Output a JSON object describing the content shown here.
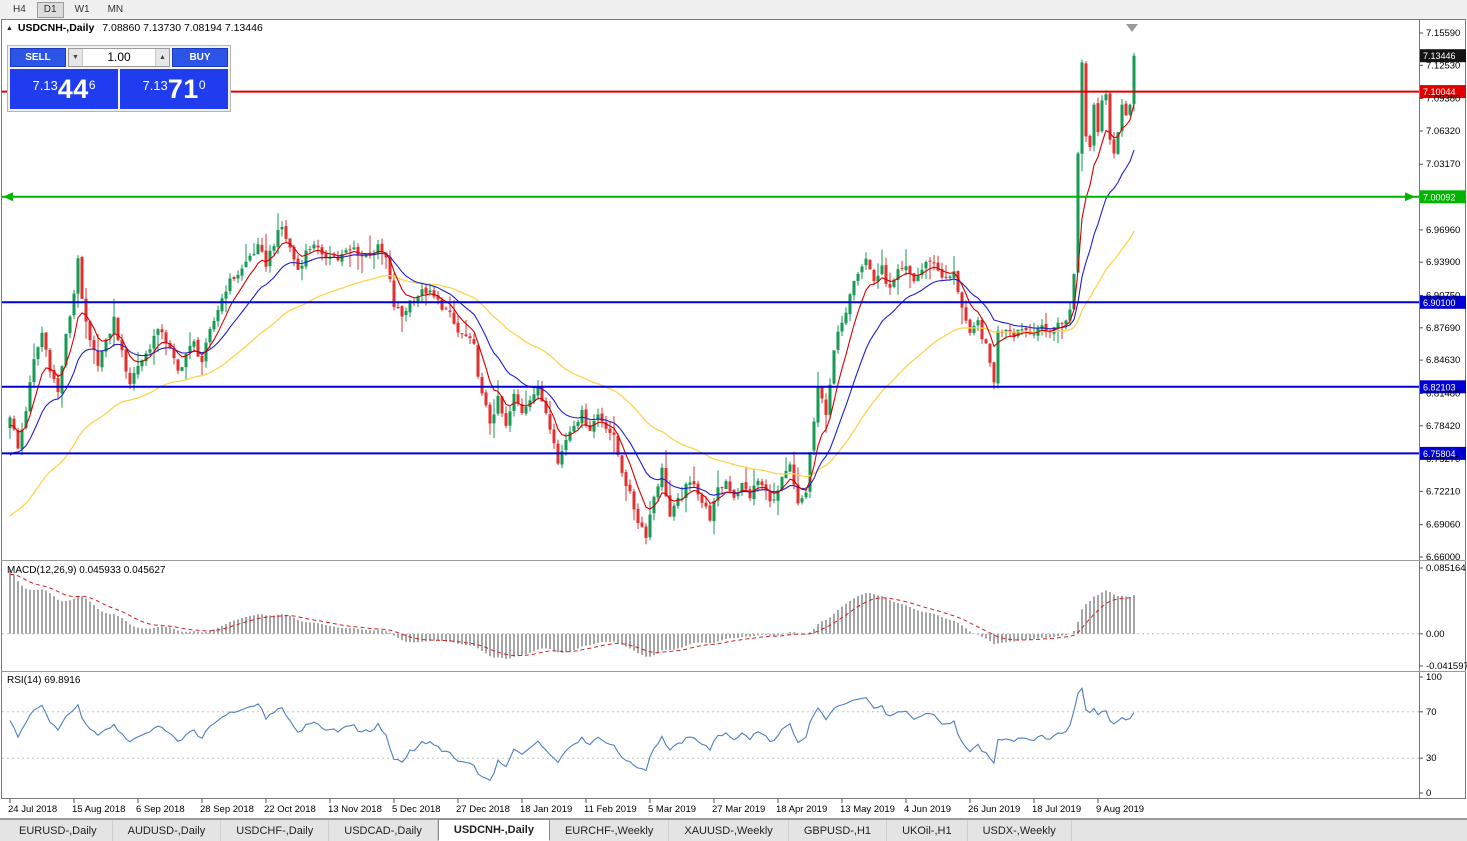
{
  "toolbar": {
    "timeframes": [
      "H4",
      "D1",
      "W1",
      "MN"
    ],
    "active": "D1"
  },
  "chart": {
    "symbol_period": "USDCNH-,Daily",
    "ohlc_text": "7.08860 7.13730 7.08194 7.13446"
  },
  "trade_panel": {
    "sell_label": "SELL",
    "buy_label": "BUY",
    "volume": "1.00",
    "bid": {
      "prefix": "7.13",
      "pips": "44",
      "point": "6",
      "full": "7.13446"
    },
    "ask": {
      "prefix": "7.13",
      "pips": "71",
      "point": "0",
      "full": "7.13710"
    }
  },
  "indicators": {
    "macd": {
      "label": "MACD(12,26,9) 0.045933 0.045627",
      "scale_max": "0.085164",
      "scale_zero": "0.00",
      "scale_min": "-0.041597"
    },
    "rsi": {
      "label": "RSI(14) 69.8916",
      "scale": [
        "100",
        "70",
        "30",
        "0"
      ]
    }
  },
  "price_scale": {
    "ticks": [
      "7.15590",
      "7.12530",
      "7.09380",
      "7.06320",
      "7.03170",
      "6.96960",
      "6.93900",
      "6.90750",
      "6.87690",
      "6.84630",
      "6.81480",
      "6.78420",
      "6.75270",
      "6.72210",
      "6.69060",
      "6.66000"
    ],
    "markers": [
      {
        "value": "7.13446",
        "bg": "#141414"
      },
      {
        "value": "7.10044",
        "bg": "#e00000"
      },
      {
        "value": "7.00092",
        "bg": "#00b400"
      },
      {
        "value": "6.90100",
        "bg": "#0000d0"
      },
      {
        "value": "6.82103",
        "bg": "#0000d0"
      },
      {
        "value": "6.75804",
        "bg": "#0000d0"
      }
    ]
  },
  "tabs": {
    "items": [
      "EURUSD-,Daily",
      "AUDUSD-,Daily",
      "USDCHF-,Daily",
      "USDCAD-,Daily",
      "USDCNH-,Daily",
      "EURCHF-,Weekly",
      "XAUUSD-,Weekly",
      "GBPUSD-,H1",
      "UKOil-,H1",
      "USDX-,Weekly"
    ],
    "active_index": 4
  },
  "chart_data": {
    "type": "candlestick",
    "symbol": "USDCNH",
    "period": "Daily",
    "ohlc_current": {
      "open": 7.0886,
      "high": 7.1373,
      "low": 7.08194,
      "close": 7.13446
    },
    "current_price": 7.13446,
    "price_axis": {
      "min": 6.66,
      "max": 7.1559
    },
    "y_ticks": [
      7.1559,
      7.1253,
      7.0938,
      7.0632,
      7.0317,
      6.9696,
      6.939,
      6.9075,
      6.8769,
      6.8463,
      6.8148,
      6.7842,
      6.7527,
      6.7221,
      6.6906,
      6.66
    ],
    "hlines": [
      {
        "price": 7.10044,
        "color": "#e00000",
        "style": "solid",
        "arrows": false
      },
      {
        "price": 7.00092,
        "color": "#00b400",
        "style": "solid",
        "arrows": true
      },
      {
        "price": 6.901,
        "color": "#0000d0",
        "style": "solid",
        "arrows": false
      },
      {
        "price": 6.82103,
        "color": "#0000d0",
        "style": "solid",
        "arrows": false
      },
      {
        "price": 6.75804,
        "color": "#0000d0",
        "style": "solid",
        "arrows": false
      }
    ],
    "candle_count": 282,
    "x_labels": [
      "24 Jul 2018",
      "15 Aug 2018",
      "6 Sep 2018",
      "28 Sep 2018",
      "22 Oct 2018",
      "13 Nov 2018",
      "5 Dec 2018",
      "27 Dec 2018",
      "18 Jan 2019",
      "11 Feb 2019",
      "5 Mar 2019",
      "27 Mar 2019",
      "18 Apr 2019",
      "13 May 2019",
      "4 Jun 2019",
      "26 Jun 2019",
      "18 Jul 2019",
      "9 Aug 2019"
    ],
    "keypoints": [
      [
        0,
        6.795
      ],
      [
        2,
        6.762
      ],
      [
        4,
        6.8
      ],
      [
        6,
        6.845
      ],
      [
        8,
        6.872
      ],
      [
        10,
        6.84
      ],
      [
        12,
        6.815
      ],
      [
        14,
        6.868
      ],
      [
        16,
        6.91
      ],
      [
        17,
        6.945
      ],
      [
        18,
        6.9
      ],
      [
        20,
        6.862
      ],
      [
        22,
        6.845
      ],
      [
        24,
        6.862
      ],
      [
        26,
        6.885
      ],
      [
        28,
        6.852
      ],
      [
        30,
        6.825
      ],
      [
        32,
        6.842
      ],
      [
        34,
        6.852
      ],
      [
        36,
        6.868
      ],
      [
        38,
        6.875
      ],
      [
        40,
        6.855
      ],
      [
        42,
        6.835
      ],
      [
        44,
        6.852
      ],
      [
        46,
        6.862
      ],
      [
        48,
        6.845
      ],
      [
        50,
        6.872
      ],
      [
        52,
        6.895
      ],
      [
        54,
        6.915
      ],
      [
        56,
        6.925
      ],
      [
        58,
        6.932
      ],
      [
        60,
        6.945
      ],
      [
        62,
        6.952
      ],
      [
        64,
        6.938
      ],
      [
        66,
        6.958
      ],
      [
        68,
        6.972
      ],
      [
        70,
        6.952
      ],
      [
        72,
        6.932
      ],
      [
        74,
        6.948
      ],
      [
        76,
        6.958
      ],
      [
        78,
        6.942
      ],
      [
        80,
        6.948
      ],
      [
        82,
        6.942
      ],
      [
        84,
        6.948
      ],
      [
        86,
        6.952
      ],
      [
        88,
        6.945
      ],
      [
        90,
        6.948
      ],
      [
        92,
        6.952
      ],
      [
        94,
        6.942
      ],
      [
        96,
        6.898
      ],
      [
        98,
        6.888
      ],
      [
        100,
        6.902
      ],
      [
        102,
        6.908
      ],
      [
        104,
        6.912
      ],
      [
        106,
        6.905
      ],
      [
        108,
        6.898
      ],
      [
        110,
        6.888
      ],
      [
        112,
        6.872
      ],
      [
        114,
        6.868
      ],
      [
        116,
        6.858
      ],
      [
        118,
        6.812
      ],
      [
        120,
        6.788
      ],
      [
        122,
        6.808
      ],
      [
        124,
        6.782
      ],
      [
        126,
        6.812
      ],
      [
        128,
        6.798
      ],
      [
        130,
        6.812
      ],
      [
        132,
        6.818
      ],
      [
        134,
        6.798
      ],
      [
        136,
        6.772
      ],
      [
        137,
        6.748
      ],
      [
        139,
        6.772
      ],
      [
        141,
        6.788
      ],
      [
        143,
        6.795
      ],
      [
        145,
        6.782
      ],
      [
        147,
        6.795
      ],
      [
        149,
        6.785
      ],
      [
        151,
        6.772
      ],
      [
        153,
        6.742
      ],
      [
        155,
        6.718
      ],
      [
        157,
        6.695
      ],
      [
        159,
        6.682
      ],
      [
        161,
        6.718
      ],
      [
        163,
        6.742
      ],
      [
        165,
        6.698
      ],
      [
        167,
        6.712
      ],
      [
        169,
        6.725
      ],
      [
        171,
        6.732
      ],
      [
        173,
        6.712
      ],
      [
        175,
        6.698
      ],
      [
        177,
        6.722
      ],
      [
        179,
        6.732
      ],
      [
        181,
        6.718
      ],
      [
        183,
        6.728
      ],
      [
        185,
        6.718
      ],
      [
        187,
        6.732
      ],
      [
        189,
        6.722
      ],
      [
        191,
        6.712
      ],
      [
        193,
        6.732
      ],
      [
        195,
        6.745
      ],
      [
        197,
        6.708
      ],
      [
        199,
        6.722
      ],
      [
        200,
        6.758
      ],
      [
        201,
        6.788
      ],
      [
        202,
        6.818
      ],
      [
        203,
        6.808
      ],
      [
        204,
        6.798
      ],
      [
        205,
        6.825
      ],
      [
        206,
        6.852
      ],
      [
        207,
        6.872
      ],
      [
        208,
        6.878
      ],
      [
        209,
        6.895
      ],
      [
        210,
        6.912
      ],
      [
        211,
        6.925
      ],
      [
        212,
        6.932
      ],
      [
        214,
        6.942
      ],
      [
        216,
        6.922
      ],
      [
        218,
        6.932
      ],
      [
        220,
        6.912
      ],
      [
        222,
        6.928
      ],
      [
        224,
        6.932
      ],
      [
        226,
        6.922
      ],
      [
        228,
        6.932
      ],
      [
        230,
        6.942
      ],
      [
        232,
        6.932
      ],
      [
        234,
        6.922
      ],
      [
        236,
        6.928
      ],
      [
        238,
        6.898
      ],
      [
        240,
        6.868
      ],
      [
        242,
        6.882
      ],
      [
        244,
        6.858
      ],
      [
        246,
        6.828
      ],
      [
        247,
        6.872
      ],
      [
        249,
        6.878
      ],
      [
        251,
        6.872
      ],
      [
        253,
        6.878
      ],
      [
        255,
        6.872
      ],
      [
        257,
        6.878
      ],
      [
        259,
        6.872
      ],
      [
        261,
        6.878
      ],
      [
        263,
        6.882
      ],
      [
        265,
        6.892
      ],
      [
        266,
        6.928
      ],
      [
        267,
        7.042
      ],
      [
        268,
        7.128
      ],
      [
        269,
        7.058
      ],
      [
        270,
        7.048
      ],
      [
        271,
        7.088
      ],
      [
        272,
        7.062
      ],
      [
        273,
        7.092
      ],
      [
        274,
        7.098
      ],
      [
        275,
        7.055
      ],
      [
        276,
        7.042
      ],
      [
        277,
        7.062
      ],
      [
        278,
        7.088
      ],
      [
        279,
        7.078
      ],
      [
        280,
        7.088
      ],
      [
        281,
        7.13446
      ]
    ],
    "last_candle": {
      "open": 7.0886,
      "high": 7.1373,
      "low": 7.08194,
      "close": 7.13446
    },
    "moving_averages": [
      {
        "type": "ema",
        "period": 7,
        "color": "#d40000"
      },
      {
        "type": "ema",
        "period": 18,
        "color": "#2020cc"
      },
      {
        "type": "ema",
        "period": 50,
        "color": "#ffd34d"
      }
    ],
    "macd": {
      "fast": 12,
      "slow": 26,
      "signal": 9,
      "value": 0.045933,
      "signal_value": 0.045627,
      "range": [
        -0.041597,
        0.085164
      ],
      "histogram_color": "#a6a6a6",
      "signal_color": "#cc2222"
    },
    "rsi": {
      "period": 14,
      "value": 69.8916,
      "range": [
        0,
        100
      ],
      "levels": [
        70,
        30
      ],
      "color": "#4c7fc0"
    },
    "colors": {
      "up": "#169a54",
      "down": "#e03030",
      "background": "#ffffff"
    }
  }
}
